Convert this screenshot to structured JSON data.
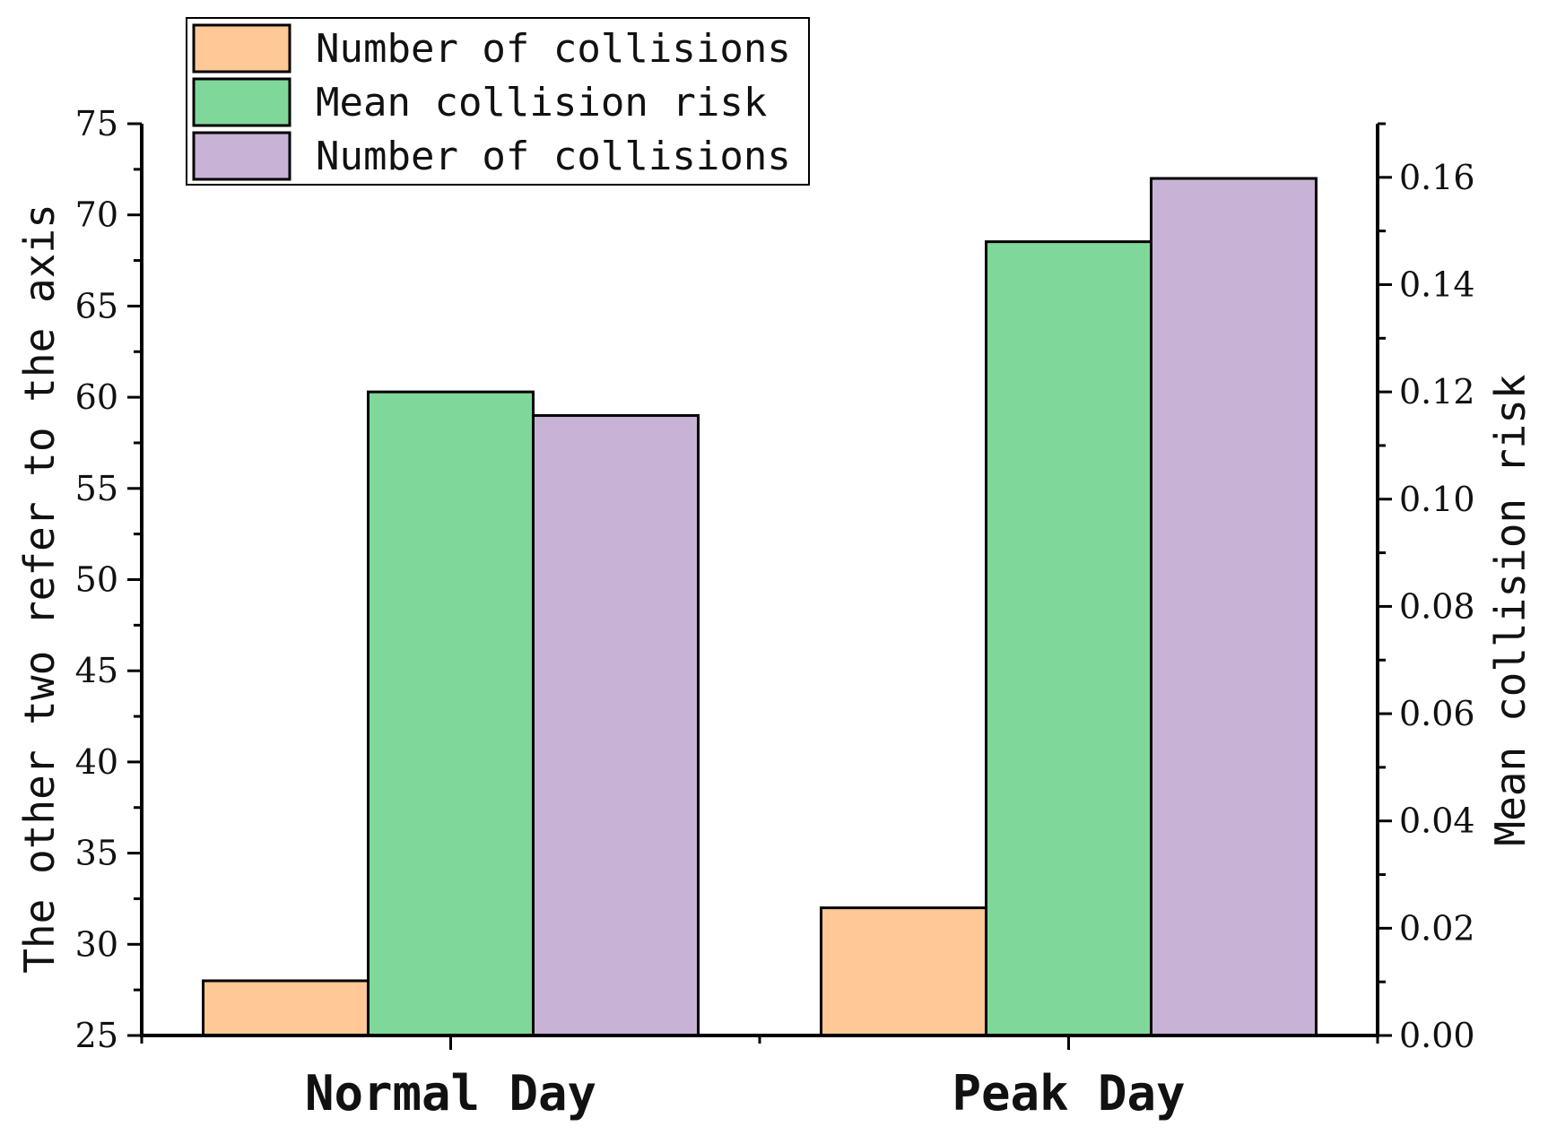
{
  "chart_data": {
    "type": "bar",
    "categories": [
      "Normal Day",
      "Peak Day"
    ],
    "series": [
      {
        "name": "Number of collisions",
        "axis": "left",
        "color": "#FFC896",
        "values": [
          28,
          32
        ]
      },
      {
        "name": "Mean collision risk",
        "axis": "right",
        "color": "#7FD89A",
        "values": [
          0.12,
          0.148
        ]
      },
      {
        "name": "Number of collisions",
        "axis": "left",
        "color": "#C8B2D6",
        "values": [
          59,
          72
        ]
      }
    ],
    "left_axis": {
      "label": "The other two refer to the axis",
      "range": [
        25,
        75
      ],
      "ticks": [
        "25",
        "30",
        "35",
        "40",
        "45",
        "50",
        "55",
        "60",
        "65",
        "70",
        "75"
      ]
    },
    "right_axis": {
      "label": "Mean collision risk",
      "range": [
        0,
        0.17
      ],
      "ticks": [
        "0.00",
        "0.02",
        "0.04",
        "0.06",
        "0.08",
        "0.10",
        "0.12",
        "0.14",
        "0.16"
      ]
    },
    "legend_position": "top-left",
    "grid": false
  }
}
